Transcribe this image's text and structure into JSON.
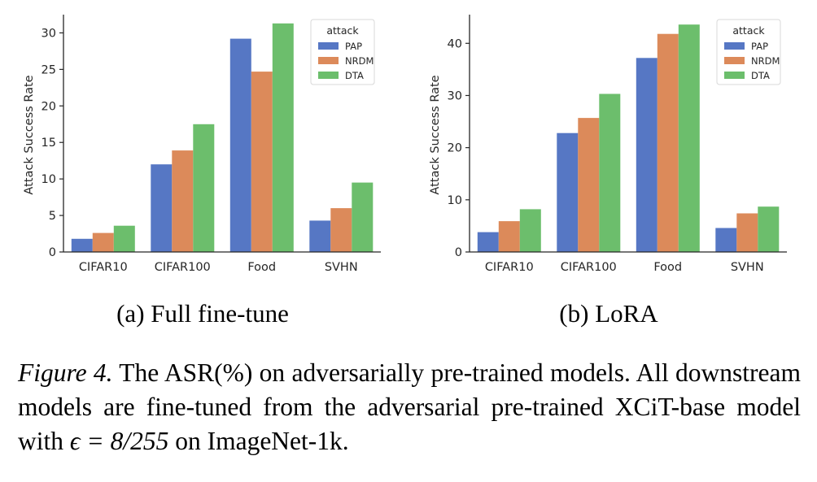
{
  "colors": {
    "PAP": "#5677c4",
    "NRDM": "#dc8a5a",
    "DTA": "#6cbe6c",
    "axis": "#262626"
  },
  "chart_data": [
    {
      "type": "bar",
      "subcaption": "(a) Full fine-tune",
      "ylabel": "Attack Success Rate",
      "xlabel": "",
      "ylim": [
        0,
        32.5
      ],
      "yticks": [
        0,
        5,
        10,
        15,
        20,
        25,
        30
      ],
      "categories": [
        "CIFAR10",
        "CIFAR100",
        "Food",
        "SVHN"
      ],
      "legend_title": "attack",
      "legend_loc": "top-right",
      "series": [
        {
          "name": "PAP",
          "values": [
            1.8,
            12.0,
            29.2,
            4.3
          ]
        },
        {
          "name": "NRDM",
          "values": [
            2.6,
            13.9,
            24.7,
            6.0
          ]
        },
        {
          "name": "DTA",
          "values": [
            3.6,
            17.5,
            31.3,
            9.5
          ]
        }
      ]
    },
    {
      "type": "bar",
      "subcaption": "(b) LoRA",
      "ylabel": "Attack Success Rate",
      "xlabel": "",
      "ylim": [
        0,
        45.5
      ],
      "yticks": [
        0,
        10,
        20,
        30,
        40
      ],
      "categories": [
        "CIFAR10",
        "CIFAR100",
        "Food",
        "SVHN"
      ],
      "legend_title": "attack",
      "legend_loc": "top-right",
      "series": [
        {
          "name": "PAP",
          "values": [
            3.8,
            22.8,
            37.2,
            4.6
          ]
        },
        {
          "name": "NRDM",
          "values": [
            5.9,
            25.7,
            41.8,
            7.4
          ]
        },
        {
          "name": "DTA",
          "values": [
            8.2,
            30.3,
            43.6,
            8.7
          ]
        }
      ]
    }
  ],
  "caption": {
    "label": "Figure 4.",
    "text_before_math": " The ASR(%) on adversarially pre-trained models. All downstream models are fine-tuned from the adversarial pre-trained XCiT-base model with ",
    "math": "ϵ = 8/255",
    "text_after_math": " on ImageNet-1k."
  }
}
